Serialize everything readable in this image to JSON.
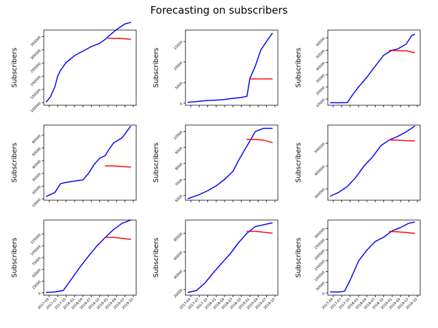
{
  "figure": {
    "title": "Forecasting on subscribers"
  },
  "colors": {
    "actual": "#0000ff",
    "forecast": "#ff0000",
    "axis": "#000000"
  },
  "shared": {
    "ylabel": "Subscribers",
    "x_ticks": [
      "2017-04",
      "2017-07",
      "2017-10",
      "2018-01",
      "2018-04",
      "2018-07",
      "2018-10",
      "2019-01",
      "2019-04",
      "2019-07",
      "2019-10"
    ]
  },
  "chart_data": [
    {
      "type": "line",
      "ylabel": "Subscribers",
      "ylim": [
        90000,
        375000
      ],
      "y_ticks": [
        "100000",
        "150000",
        "200000",
        "250000",
        "300000",
        "350000"
      ],
      "show_x_tick_labels": false,
      "series": [
        {
          "x": [
            "2017-03-01",
            "2017-04-15",
            "2017-06-01",
            "2017-07-01",
            "2017-08-01",
            "2017-10-01",
            "2018-01-01",
            "2018-04-01",
            "2018-07-01",
            "2018-10-01",
            "2018-12-01",
            "2019-01-01",
            "2019-04-01",
            "2019-07-01",
            "2019-09-01"
          ],
          "values": [
            103000,
            122000,
            160000,
            200000,
            222000,
            252000,
            278000,
            295000,
            312000,
            325000,
            340000,
            350000,
            377000,
            398000,
            404000
          ]
        },
        {
          "x": [
            "2019-01-01",
            "2019-03-01",
            "2019-05-01",
            "2019-07-01",
            "2019-09-01"
          ],
          "values": [
            344000,
            343000,
            344000,
            342000,
            340000
          ]
        }
      ]
    },
    {
      "type": "line",
      "ylabel": "Subscribers",
      "ylim": [
        -500,
        17800
      ],
      "y_ticks": [
        "0",
        "5000",
        "10000",
        "15000"
      ],
      "show_x_tick_labels": false,
      "series": [
        {
          "x": [
            "2017-03-01",
            "2017-06-01",
            "2017-09-01",
            "2018-01-01",
            "2018-04-01",
            "2018-06-01",
            "2018-10-01",
            "2018-12-01",
            "2019-01-01",
            "2019-03-01",
            "2019-05-01",
            "2019-07-01",
            "2019-09-01"
          ],
          "values": [
            200,
            400,
            600,
            750,
            900,
            1100,
            1400,
            1700,
            6000,
            9000,
            13000,
            15000,
            17000
          ]
        },
        {
          "x": [
            "2019-01-01",
            "2019-04-01",
            "2019-07-01",
            "2019-09-01"
          ],
          "values": [
            5900,
            5900,
            5900,
            5900
          ]
        }
      ]
    },
    {
      "type": "line",
      "ylabel": "Subscribers",
      "ylim": [
        5000,
        66500
      ],
      "y_ticks": [
        "10000",
        "20000",
        "30000",
        "40000",
        "50000",
        "60000"
      ],
      "show_x_tick_labels": false,
      "series": [
        {
          "x": [
            "2017-03-01",
            "2017-06-01",
            "2017-09-01",
            "2017-11-01",
            "2018-01-01",
            "2018-04-01",
            "2018-07-01",
            "2018-10-01",
            "2019-01-01",
            "2019-03-01",
            "2019-06-01",
            "2019-08-01",
            "2019-09-01"
          ],
          "values": [
            7000,
            7000,
            7200,
            14000,
            20000,
            28000,
            37000,
            46000,
            50000,
            51000,
            55000,
            62000,
            63000
          ]
        },
        {
          "x": [
            "2018-12-01",
            "2019-03-01",
            "2019-06-01",
            "2019-09-01"
          ],
          "values": [
            50000,
            49500,
            49500,
            48000
          ]
        }
      ]
    },
    {
      "type": "line",
      "ylabel": "Subscribers",
      "ylim": [
        9000,
        68000
      ],
      "y_ticks": [
        "10000",
        "20000",
        "30000",
        "40000",
        "50000",
        "60000"
      ],
      "show_x_tick_labels": false,
      "series": [
        {
          "x": [
            "2017-03-01",
            "2017-06-01",
            "2017-08-01",
            "2017-10-01",
            "2018-01-01",
            "2018-04-01",
            "2018-06-01",
            "2018-08-01",
            "2018-10-01",
            "2018-12-01",
            "2019-01-01",
            "2019-03-01",
            "2019-06-01",
            "2019-08-01",
            "2019-09-01"
          ],
          "values": [
            12000,
            15000,
            22000,
            23000,
            24000,
            25000,
            30000,
            37000,
            42000,
            44000,
            48000,
            54000,
            58000,
            64000,
            67000
          ]
        },
        {
          "x": [
            "2018-12-01",
            "2019-03-01",
            "2019-06-01",
            "2019-09-01"
          ],
          "values": [
            36000,
            36000,
            35500,
            35000
          ]
        }
      ]
    },
    {
      "type": "line",
      "ylabel": "Subscribers",
      "ylim": [
        5700,
        10400
      ],
      "y_ticks": [
        "6000",
        "7000",
        "8000",
        "9000",
        "10000"
      ],
      "show_x_tick_labels": false,
      "series": [
        {
          "x": [
            "2017-03-01",
            "2017-07-01",
            "2017-10-01",
            "2018-01-01",
            "2018-04-01",
            "2018-07-01",
            "2018-09-01",
            "2018-11-01",
            "2019-01-01",
            "2019-03-01",
            "2019-06-01",
            "2019-09-01"
          ],
          "values": [
            5800,
            6050,
            6300,
            6600,
            7000,
            7500,
            8200,
            8800,
            9400,
            10000,
            10200,
            10200
          ]
        },
        {
          "x": [
            "2018-12-01",
            "2019-03-01",
            "2019-06-01",
            "2019-09-01"
          ],
          "values": [
            9500,
            9500,
            9450,
            9300
          ]
        }
      ]
    },
    {
      "type": "line",
      "ylabel": "Subscribers",
      "ylim": [
        250000,
        580000
      ],
      "y_ticks": [
        "300000",
        "400000",
        "500000"
      ],
      "show_x_tick_labels": false,
      "series": [
        {
          "x": [
            "2017-03-01",
            "2017-06-01",
            "2017-09-01",
            "2017-12-01",
            "2018-03-01",
            "2018-06-01",
            "2018-09-01",
            "2018-12-01",
            "2019-03-01",
            "2019-06-01",
            "2019-09-01"
          ],
          "values": [
            268000,
            285000,
            310000,
            350000,
            400000,
            440000,
            490000,
            515000,
            530000,
            550000,
            575000
          ]
        },
        {
          "x": [
            "2018-12-01",
            "2019-03-01",
            "2019-06-01",
            "2019-09-01"
          ],
          "values": [
            515000,
            514000,
            512000,
            510000
          ]
        }
      ]
    },
    {
      "type": "line",
      "ylabel": "Subscribers",
      "ylim": [
        -5000,
        155000
      ],
      "y_ticks": [
        "0",
        "25000",
        "50000",
        "75000",
        "100000",
        "125000"
      ],
      "show_x_tick_labels": true,
      "series": [
        {
          "x": [
            "2017-03-01",
            "2017-06-01",
            "2017-09-01",
            "2017-12-01",
            "2018-03-01",
            "2018-06-01",
            "2018-09-01",
            "2018-12-01",
            "2019-03-01",
            "2019-06-01",
            "2019-09-01"
          ],
          "values": [
            1000,
            2000,
            5000,
            30000,
            55000,
            78000,
            100000,
            118000,
            135000,
            148000,
            155000
          ]
        },
        {
          "x": [
            "2018-12-01",
            "2019-03-01",
            "2019-06-01",
            "2019-09-01"
          ],
          "values": [
            118000,
            118000,
            116000,
            114000
          ]
        }
      ]
    },
    {
      "type": "line",
      "ylabel": "Subscribers",
      "ylim": [
        14000,
        94000
      ],
      "y_ticks": [
        "20000",
        "40000",
        "60000",
        "80000"
      ],
      "show_x_tick_labels": true,
      "series": [
        {
          "x": [
            "2017-03-01",
            "2017-06-01",
            "2017-09-01",
            "2017-12-01",
            "2018-03-01",
            "2018-06-01",
            "2018-09-01",
            "2018-12-01",
            "2019-03-01",
            "2019-06-01",
            "2019-09-01"
          ],
          "values": [
            17000,
            19000,
            27000,
            38000,
            48000,
            58000,
            70000,
            80000,
            87000,
            89000,
            91000
          ]
        },
        {
          "x": [
            "2018-12-01",
            "2019-03-01",
            "2019-06-01",
            "2019-09-01"
          ],
          "values": [
            82000,
            82000,
            81000,
            80000
          ]
        }
      ]
    },
    {
      "type": "line",
      "ylabel": "Subscribers",
      "ylim": [
        -10000,
        340000
      ],
      "y_ticks": [
        "0",
        "50000",
        "100000",
        "150000",
        "200000",
        "250000",
        "300000"
      ],
      "show_x_tick_labels": true,
      "series": [
        {
          "x": [
            "2017-03-01",
            "2017-06-01",
            "2017-08-01",
            "2017-10-01",
            "2018-01-01",
            "2018-04-01",
            "2018-07-01",
            "2018-10-01",
            "2019-01-01",
            "2019-04-01",
            "2019-07-01",
            "2019-09-01"
          ],
          "values": [
            5000,
            5000,
            8000,
            60000,
            150000,
            200000,
            240000,
            260000,
            290000,
            305000,
            325000,
            330000
          ]
        },
        {
          "x": [
            "2018-12-01",
            "2019-03-01",
            "2019-06-01",
            "2019-09-01"
          ],
          "values": [
            287000,
            285000,
            282000,
            278000
          ]
        }
      ]
    }
  ]
}
